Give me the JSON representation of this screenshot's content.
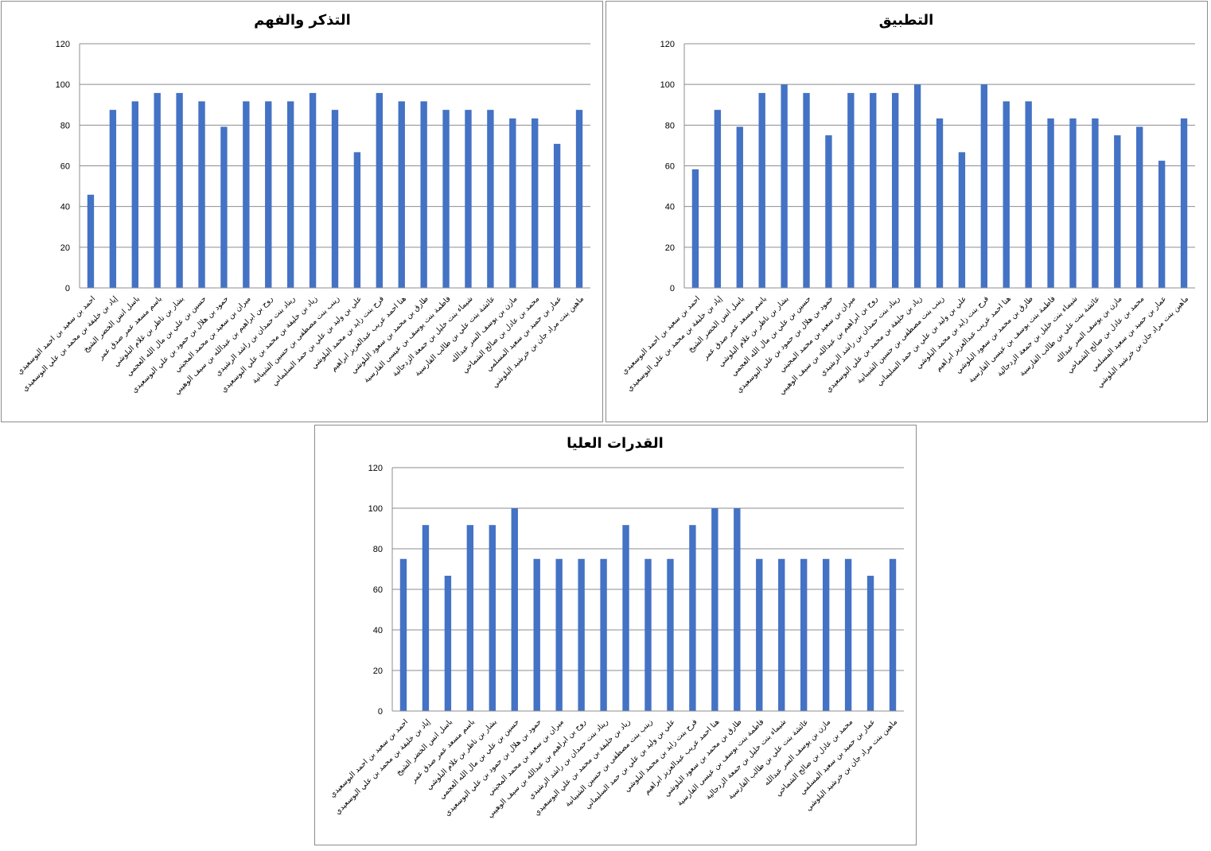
{
  "chart_data": [
    {
      "type": "bar",
      "title": "التذكر والفهم",
      "xlabel": "",
      "ylabel": "",
      "ylim": [
        0,
        120
      ],
      "yticks": [
        0,
        20,
        40,
        60,
        80,
        100,
        120
      ],
      "grid": true,
      "color": "#4472C4",
      "categories": [
        "احمد بن سعيد بن احمد البوسعيدي",
        "إياد بن خليفة بن محمد بن علي البوسعيدي",
        "باسل انس الخضر الشيخ",
        "باسم مسعد عمر صدق عمر",
        "بشار بن ناظر بن غلام البلوشي",
        "حسين بن علي بن مال الله العجمي",
        "حمود بن هلال بن حمود بن علي البوسعيدي",
        "ميران بن سعيد بن محمد المجيني",
        "روح بن ابراهيم بن عبدالله بن سيف الوهيبي",
        "ريناد بنت حمدان بن راشد الرشيدي",
        "زياد بن خليفة بن محمد بن علي البوسعيدي",
        "زينب بنت مصطفى بن حسين الشيبانية",
        "علي بن وليد بن علي بن حمد السليماني",
        "فرح بنت زايد بن محمد البلوشي",
        "هنا احمد عريب عبدالعزيز ابراهيم",
        "طارق بن محمد بن سعود البلوشي",
        "فاطمة بنت يوسف بن عيسى الفارسية",
        "شيماء بنت خليل بن جمعة الزدجالية",
        "عائشة بنت علي بن طالب الفارسية",
        "مازن بن يوسف السر عبدالله",
        "محمد بن عادل بن صالح الشماخي",
        "عمار بن حميد بن سعيد المسلمي",
        "ماهين بنت مراد جان بن خرشيد البلوشي"
      ],
      "values": [
        45.8,
        87.5,
        91.7,
        95.8,
        95.8,
        91.7,
        79.2,
        91.7,
        91.7,
        91.7,
        95.8,
        87.5,
        66.7,
        95.8,
        91.7,
        91.7,
        87.5,
        87.5,
        87.5,
        83.3,
        83.3,
        70.8,
        87.5
      ]
    },
    {
      "type": "bar",
      "title": "التطبيق",
      "xlabel": "",
      "ylabel": "",
      "ylim": [
        0,
        120
      ],
      "yticks": [
        0,
        20,
        40,
        60,
        80,
        100,
        120
      ],
      "grid": true,
      "color": "#4472C4",
      "categories": [
        "احمد بن سعيد بن احمد البوسعيدي",
        "إياد بن خليفة بن محمد بن علي البوسعيدي",
        "باسل انس الخضر الشيخ",
        "باسم مسعد عمر صدق عمر",
        "بشار بن ناظر بن غلام البلوشي",
        "حسين بن علي بن مال الله العجمي",
        "حمود بن هلال بن حمود بن علي البوسعيدي",
        "ميران بن سعيد بن محمد المجيني",
        "روح بن ابراهيم بن عبدالله بن سيف الوهيبي",
        "ريناد بنت حمدان بن راشد الرشيدي",
        "زياد بن خليفة بن محمد بن علي البوسعيدي",
        "زينب بنت مصطفى بن حسين الشيبانية",
        "علي بن وليد بن علي بن حمد السليماني",
        "فرح بنت زايد بن محمد البلوشي",
        "هنا احمد عريب عبدالعزيز ابراهيم",
        "طارق بن محمد بن سعود البلوشي",
        "فاطمة بنت يوسف بن عيسى الفارسية",
        "شيماء بنت خليل بن جمعة الزدجالية",
        "عائشة بنت علي بن طالب الفارسية",
        "مازن بن يوسف السر عبدالله",
        "محمد بن عادل بن صالح الشماخي",
        "عمار بن حميد بن سعيد المسلمي",
        "ماهين بنت مراد جان بن خرشيد البلوشي"
      ],
      "values": [
        58.3,
        87.5,
        79.2,
        95.8,
        100,
        95.8,
        75,
        95.8,
        95.8,
        95.8,
        100,
        83.3,
        66.7,
        100,
        91.7,
        91.7,
        83.3,
        83.3,
        83.3,
        75,
        79.2,
        62.5,
        83.3
      ]
    },
    {
      "type": "bar",
      "title": "القدرات العليا",
      "xlabel": "",
      "ylabel": "",
      "ylim": [
        0,
        120
      ],
      "yticks": [
        0,
        20,
        40,
        60,
        80,
        100,
        120
      ],
      "grid": true,
      "color": "#4472C4",
      "categories": [
        "احمد بن سعيد بن احمد البوسعيدي",
        "إياد بن خليفة بن محمد بن علي البوسعيدي",
        "باسل انس الخضر الشيخ",
        "باسم مسعد عمر صدق عمر",
        "بشار بن ناظر بن غلام البلوشي",
        "حسين بن علي بن مال الله العجمي",
        "حمود بن هلال بن حمود بن علي البوسعيدي",
        "ميران بن سعيد بن محمد المجيني",
        "روح بن ابراهيم بن عبدالله بن سيف الوهيبي",
        "ريناد بنت حمدان بن راشد الرشيدي",
        "زياد بن خليفة بن محمد بن علي البوسعيدي",
        "زينب بنت مصطفى بن حسين الشيبانية",
        "علي بن وليد بن علي بن حمد السليماني",
        "فرح بنت زايد بن محمد البلوشي",
        "هنا احمد عريب عبدالعزيز ابراهيم",
        "طارق بن محمد بن سعود البلوشي",
        "فاطمة بنت يوسف بن عيسى الفارسية",
        "شيماء بنت خليل بن جمعة الزدجالية",
        "عائشة بنت علي بن طالب الفارسية",
        "مازن بن يوسف السر عبدالله",
        "محمد بن عادل بن صالح الشماخي",
        "عمار بن حميد بن سعيد المسلمي",
        "ماهين بنت مراد جان بن خرشيد البلوشي"
      ],
      "values": [
        75,
        91.7,
        66.7,
        91.7,
        91.7,
        100,
        75,
        75,
        75,
        75,
        91.7,
        75,
        75,
        91.7,
        100,
        100,
        75,
        75,
        75,
        75,
        75,
        66.7,
        75
      ]
    }
  ]
}
